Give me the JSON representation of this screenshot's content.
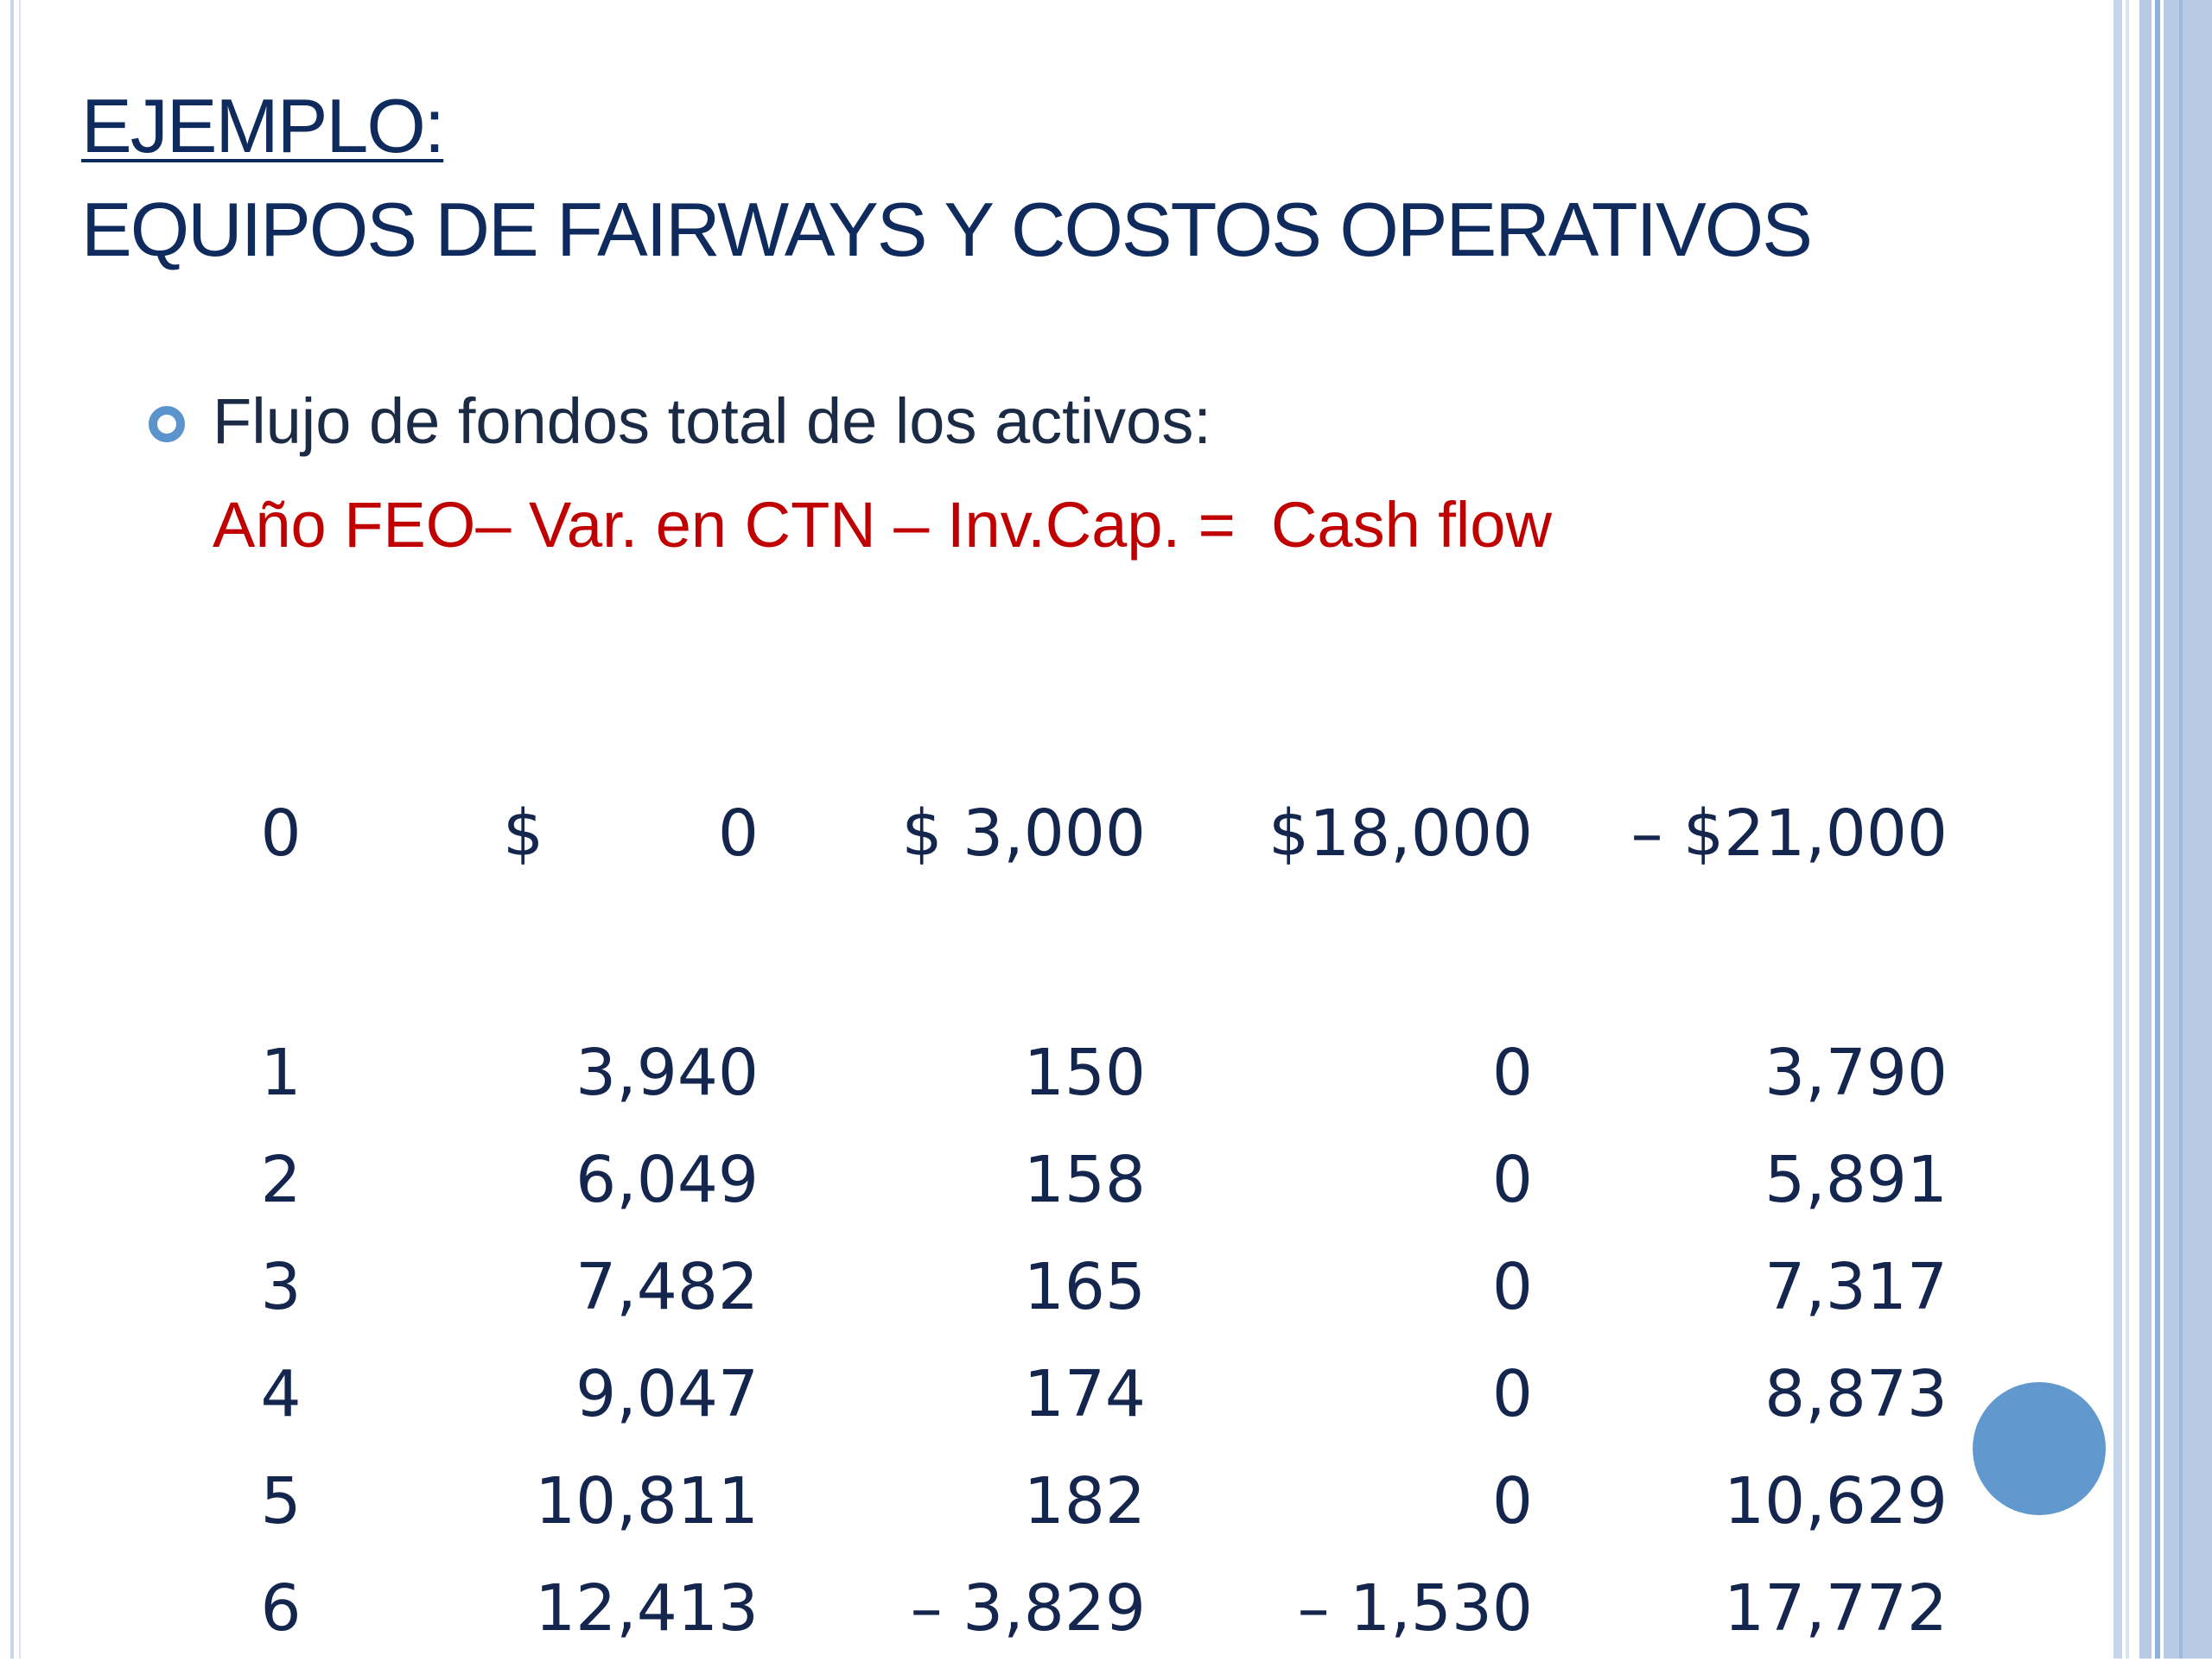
{
  "title": {
    "line1": "EJEMPLO:",
    "line2": "EQUIPOS DE FAIRWAYS Y COSTOS OPERATIVOS"
  },
  "bullet": {
    "text": "Flujo de fondos total de los activos:",
    "icon": "hollow-circle-bullet-icon"
  },
  "formula": "Año FEO– Var. en CTN – Inv.Cap. =  Cash flow",
  "table": {
    "rows": [
      {
        "year": "0",
        "feo_symbol": "$",
        "feo": "0",
        "ctn": "$ 3,000",
        "inv": "$18,000",
        "cash": "– $21,000"
      },
      {
        "year": "1",
        "feo": "3,940",
        "ctn": "150",
        "inv": "0",
        "cash": "3,790"
      },
      {
        "year": "2",
        "feo": "6,049",
        "ctn": "158",
        "inv": "0",
        "cash": "5,891"
      },
      {
        "year": "3",
        "feo": "7,482",
        "ctn": "165",
        "inv": "0",
        "cash": "7,317"
      },
      {
        "year": "4",
        "feo": "9,047",
        "ctn": "174",
        "inv": "0",
        "cash": "8,873"
      },
      {
        "year": "5",
        "feo": "10,811",
        "ctn": "182",
        "inv": "0",
        "cash": "10,629"
      },
      {
        "year": "6",
        "feo": "12,413",
        "ctn": "– 3,829",
        "inv": "– 1,530",
        "cash": "17,772"
      }
    ]
  },
  "colors": {
    "title": "#0f2a5c",
    "formula": "#c00000",
    "table_text": "#14264d",
    "accent": "#6199cf"
  }
}
